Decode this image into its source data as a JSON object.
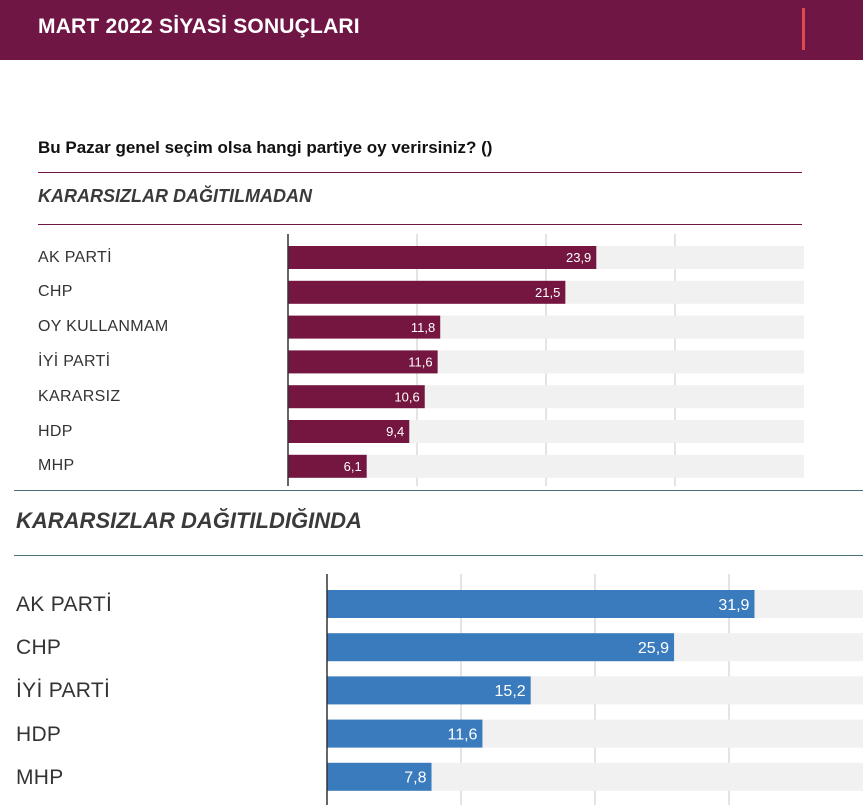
{
  "header": {
    "title": "MART 2022 SİYASİ SONUÇLARI"
  },
  "question": "Bu Pazar genel seçim olsa hangi partiye oy verirsiniz? ()",
  "colors": {
    "header_bg": "#6f1645",
    "section1_bar": "#74163f",
    "section2_bar": "#3a7bbd",
    "track": "#f1f1f1"
  },
  "chart_data": [
    {
      "type": "bar",
      "title": "KARARSIZLAR DAĞITILMADAN",
      "orientation": "horizontal",
      "categories": [
        "AK PARTİ",
        "CHP",
        "OY KULLANMAM",
        "İYİ PARTİ",
        "KARARSIZ",
        "HDP",
        "MHP"
      ],
      "values": [
        23.9,
        21.5,
        11.8,
        11.6,
        10.6,
        9.4,
        6.1
      ],
      "value_labels": [
        "23,9",
        "21,5",
        "11,8",
        "11,6",
        "10,6",
        "9,4",
        "6,1"
      ],
      "xlim": [
        0,
        40
      ],
      "grid": true
    },
    {
      "type": "bar",
      "title": "KARARSIZLAR DAĞITILDIĞINDA",
      "orientation": "horizontal",
      "categories": [
        "AK PARTİ",
        "CHP",
        "İYİ PARTİ",
        "HDP",
        "MHP"
      ],
      "values": [
        31.9,
        25.9,
        15.2,
        11.6,
        7.8
      ],
      "value_labels": [
        "31,9",
        "25,9",
        "15,2",
        "11,6",
        "7,8"
      ],
      "xlim": [
        0,
        40
      ],
      "grid": true
    }
  ]
}
